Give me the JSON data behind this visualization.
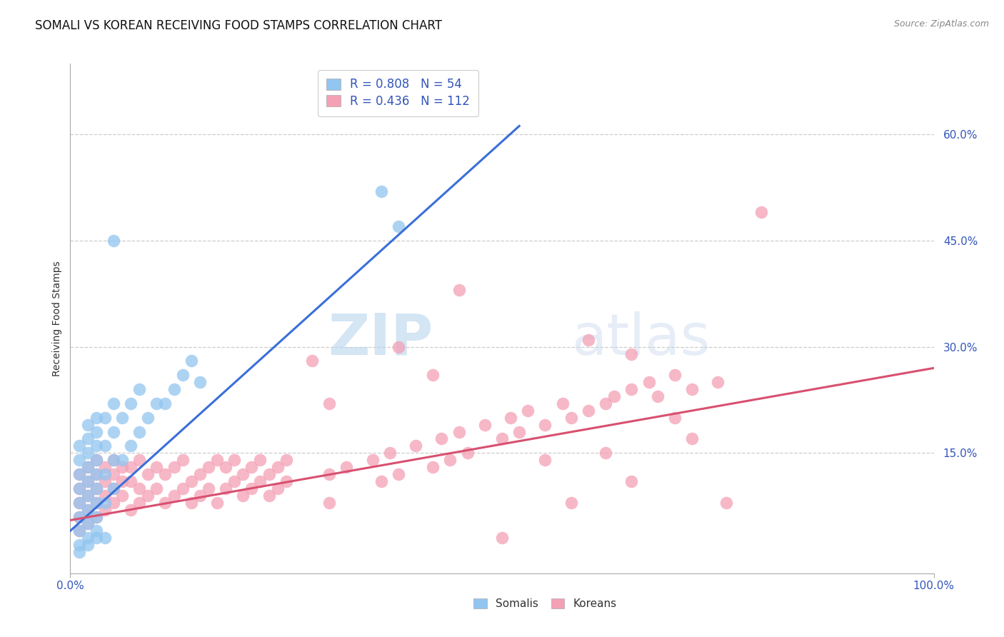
{
  "title": "SOMALI VS KOREAN RECEIVING FOOD STAMPS CORRELATION CHART",
  "source_text": "Source: ZipAtlas.com",
  "ylabel": "Receiving Food Stamps",
  "xlim": [
    0,
    1.0
  ],
  "ylim": [
    -0.02,
    0.7
  ],
  "yticks": [
    0.15,
    0.3,
    0.45,
    0.6
  ],
  "ytick_labels": [
    "15.0%",
    "30.0%",
    "45.0%",
    "60.0%"
  ],
  "xticks": [
    0.0,
    1.0
  ],
  "xtick_labels": [
    "0.0%",
    "100.0%"
  ],
  "somali_R": 0.808,
  "somali_N": 54,
  "korean_R": 0.436,
  "korean_N": 112,
  "somali_color": "#92C5F0",
  "korean_color": "#F4A0B5",
  "somali_line_color": "#3A6FD8",
  "korean_line_color": "#D85070",
  "legend_label_somali": "Somalis",
  "legend_label_korean": "Koreans",
  "watermark_zip": "ZIP",
  "watermark_atlas": "atlas",
  "background_color": "#FFFFFF",
  "grid_color": "#CCCCCC",
  "title_fontsize": 12,
  "axis_label_color": "#333333",
  "tick_label_color": "#3355BB",
  "somali_points": [
    [
      0.01,
      0.02
    ],
    [
      0.01,
      0.04
    ],
    [
      0.01,
      0.06
    ],
    [
      0.01,
      0.08
    ],
    [
      0.01,
      0.1
    ],
    [
      0.01,
      0.12
    ],
    [
      0.01,
      0.14
    ],
    [
      0.01,
      0.16
    ],
    [
      0.02,
      0.03
    ],
    [
      0.02,
      0.05
    ],
    [
      0.02,
      0.07
    ],
    [
      0.02,
      0.09
    ],
    [
      0.02,
      0.11
    ],
    [
      0.02,
      0.13
    ],
    [
      0.02,
      0.15
    ],
    [
      0.02,
      0.17
    ],
    [
      0.02,
      0.19
    ],
    [
      0.03,
      0.04
    ],
    [
      0.03,
      0.06
    ],
    [
      0.03,
      0.08
    ],
    [
      0.03,
      0.1
    ],
    [
      0.03,
      0.12
    ],
    [
      0.03,
      0.14
    ],
    [
      0.03,
      0.16
    ],
    [
      0.03,
      0.18
    ],
    [
      0.03,
      0.2
    ],
    [
      0.04,
      0.08
    ],
    [
      0.04,
      0.12
    ],
    [
      0.04,
      0.16
    ],
    [
      0.04,
      0.2
    ],
    [
      0.05,
      0.1
    ],
    [
      0.05,
      0.14
    ],
    [
      0.05,
      0.18
    ],
    [
      0.05,
      0.22
    ],
    [
      0.06,
      0.14
    ],
    [
      0.06,
      0.2
    ],
    [
      0.07,
      0.16
    ],
    [
      0.07,
      0.22
    ],
    [
      0.08,
      0.18
    ],
    [
      0.08,
      0.24
    ],
    [
      0.09,
      0.2
    ],
    [
      0.1,
      0.22
    ],
    [
      0.11,
      0.22
    ],
    [
      0.12,
      0.24
    ],
    [
      0.13,
      0.26
    ],
    [
      0.14,
      0.28
    ],
    [
      0.15,
      0.25
    ],
    [
      0.36,
      0.52
    ],
    [
      0.38,
      0.47
    ],
    [
      0.04,
      0.03
    ],
    [
      0.02,
      0.02
    ],
    [
      0.03,
      0.03
    ],
    [
      0.01,
      0.01
    ],
    [
      0.05,
      0.45
    ]
  ],
  "korean_points": [
    [
      0.01,
      0.06
    ],
    [
      0.01,
      0.08
    ],
    [
      0.01,
      0.1
    ],
    [
      0.01,
      0.12
    ],
    [
      0.01,
      0.04
    ],
    [
      0.02,
      0.05
    ],
    [
      0.02,
      0.07
    ],
    [
      0.02,
      0.09
    ],
    [
      0.02,
      0.11
    ],
    [
      0.02,
      0.13
    ],
    [
      0.03,
      0.06
    ],
    [
      0.03,
      0.08
    ],
    [
      0.03,
      0.1
    ],
    [
      0.03,
      0.12
    ],
    [
      0.03,
      0.14
    ],
    [
      0.04,
      0.07
    ],
    [
      0.04,
      0.09
    ],
    [
      0.04,
      0.11
    ],
    [
      0.04,
      0.13
    ],
    [
      0.05,
      0.08
    ],
    [
      0.05,
      0.1
    ],
    [
      0.05,
      0.12
    ],
    [
      0.05,
      0.14
    ],
    [
      0.06,
      0.09
    ],
    [
      0.06,
      0.11
    ],
    [
      0.06,
      0.13
    ],
    [
      0.07,
      0.07
    ],
    [
      0.07,
      0.11
    ],
    [
      0.07,
      0.13
    ],
    [
      0.08,
      0.08
    ],
    [
      0.08,
      0.1
    ],
    [
      0.08,
      0.14
    ],
    [
      0.09,
      0.09
    ],
    [
      0.09,
      0.12
    ],
    [
      0.1,
      0.1
    ],
    [
      0.1,
      0.13
    ],
    [
      0.11,
      0.08
    ],
    [
      0.11,
      0.12
    ],
    [
      0.12,
      0.09
    ],
    [
      0.12,
      0.13
    ],
    [
      0.13,
      0.1
    ],
    [
      0.13,
      0.14
    ],
    [
      0.14,
      0.11
    ],
    [
      0.14,
      0.08
    ],
    [
      0.15,
      0.12
    ],
    [
      0.15,
      0.09
    ],
    [
      0.16,
      0.13
    ],
    [
      0.16,
      0.1
    ],
    [
      0.17,
      0.14
    ],
    [
      0.17,
      0.08
    ],
    [
      0.18,
      0.13
    ],
    [
      0.18,
      0.1
    ],
    [
      0.19,
      0.11
    ],
    [
      0.19,
      0.14
    ],
    [
      0.2,
      0.12
    ],
    [
      0.2,
      0.09
    ],
    [
      0.21,
      0.13
    ],
    [
      0.21,
      0.1
    ],
    [
      0.22,
      0.11
    ],
    [
      0.22,
      0.14
    ],
    [
      0.23,
      0.12
    ],
    [
      0.23,
      0.09
    ],
    [
      0.24,
      0.13
    ],
    [
      0.24,
      0.1
    ],
    [
      0.25,
      0.14
    ],
    [
      0.25,
      0.11
    ],
    [
      0.3,
      0.12
    ],
    [
      0.3,
      0.08
    ],
    [
      0.32,
      0.13
    ],
    [
      0.35,
      0.14
    ],
    [
      0.36,
      0.11
    ],
    [
      0.37,
      0.15
    ],
    [
      0.38,
      0.12
    ],
    [
      0.4,
      0.16
    ],
    [
      0.42,
      0.13
    ],
    [
      0.43,
      0.17
    ],
    [
      0.44,
      0.14
    ],
    [
      0.45,
      0.18
    ],
    [
      0.46,
      0.15
    ],
    [
      0.48,
      0.19
    ],
    [
      0.5,
      0.17
    ],
    [
      0.51,
      0.2
    ],
    [
      0.52,
      0.18
    ],
    [
      0.53,
      0.21
    ],
    [
      0.55,
      0.19
    ],
    [
      0.57,
      0.22
    ],
    [
      0.58,
      0.2
    ],
    [
      0.6,
      0.21
    ],
    [
      0.6,
      0.31
    ],
    [
      0.62,
      0.22
    ],
    [
      0.63,
      0.23
    ],
    [
      0.65,
      0.24
    ],
    [
      0.65,
      0.29
    ],
    [
      0.67,
      0.25
    ],
    [
      0.68,
      0.23
    ],
    [
      0.7,
      0.26
    ],
    [
      0.72,
      0.24
    ],
    [
      0.75,
      0.25
    ],
    [
      0.76,
      0.08
    ],
    [
      0.45,
      0.38
    ],
    [
      0.5,
      0.03
    ],
    [
      0.8,
      0.49
    ],
    [
      0.38,
      0.3
    ],
    [
      0.42,
      0.26
    ],
    [
      0.55,
      0.14
    ],
    [
      0.58,
      0.08
    ],
    [
      0.62,
      0.15
    ],
    [
      0.65,
      0.11
    ],
    [
      0.7,
      0.2
    ],
    [
      0.72,
      0.17
    ],
    [
      0.28,
      0.28
    ],
    [
      0.3,
      0.22
    ]
  ],
  "somali_line_x": [
    0.0,
    0.52
  ],
  "somali_line_y_intercept": 0.04,
  "somali_line_slope": 1.1,
  "korean_line_x": [
    0.0,
    1.0
  ],
  "korean_line_y_intercept": 0.055,
  "korean_line_slope": 0.215
}
